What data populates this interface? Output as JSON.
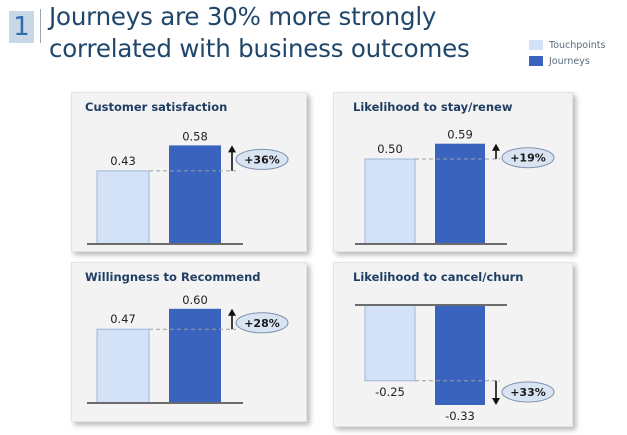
{
  "slide": {
    "number": "1",
    "title": "Journeys are 30% more strongly correlated with business outcomes"
  },
  "legend": [
    {
      "label": "Touchpoints",
      "color": "#d3e2f7"
    },
    {
      "label": "Journeys",
      "color": "#3a63be"
    }
  ],
  "colors": {
    "touchpoints_fill": "#d3e2f7",
    "touchpoints_stroke": "#9db6dc",
    "journeys_fill": "#3a63be",
    "baseline": "#6b6b6b",
    "callout_fill": "#d9e4f2",
    "callout_stroke": "#7f93ad"
  },
  "chart_data": [
    {
      "type": "bar",
      "title": "Customer satisfaction",
      "categories": [
        "Touchpoints",
        "Journeys"
      ],
      "values": [
        0.43,
        0.58
      ],
      "value_labels": [
        "0.43",
        "0.58"
      ],
      "change_label": "+36%",
      "ylim": [
        0,
        0.6
      ],
      "legend": "top-right"
    },
    {
      "type": "bar",
      "title": "Likelihood to stay/renew",
      "categories": [
        "Touchpoints",
        "Journeys"
      ],
      "values": [
        0.5,
        0.59
      ],
      "value_labels": [
        "0.50",
        "0.59"
      ],
      "change_label": "+19%",
      "ylim": [
        0,
        0.6
      ],
      "legend": "top-right"
    },
    {
      "type": "bar",
      "title": "Willingness to Recommend",
      "categories": [
        "Touchpoints",
        "Journeys"
      ],
      "values": [
        0.47,
        0.6
      ],
      "value_labels": [
        "0.47",
        "0.60"
      ],
      "change_label": "+28%",
      "ylim": [
        0,
        0.6
      ],
      "legend": "top-right"
    },
    {
      "type": "bar",
      "title": "Likelihood to cancel/churn",
      "categories": [
        "Touchpoints",
        "Journeys"
      ],
      "values": [
        -0.25,
        -0.33
      ],
      "value_labels": [
        "-0.25",
        "-0.33"
      ],
      "change_label": "+33%",
      "ylim": [
        -0.33,
        0
      ],
      "legend": "top-right"
    }
  ]
}
